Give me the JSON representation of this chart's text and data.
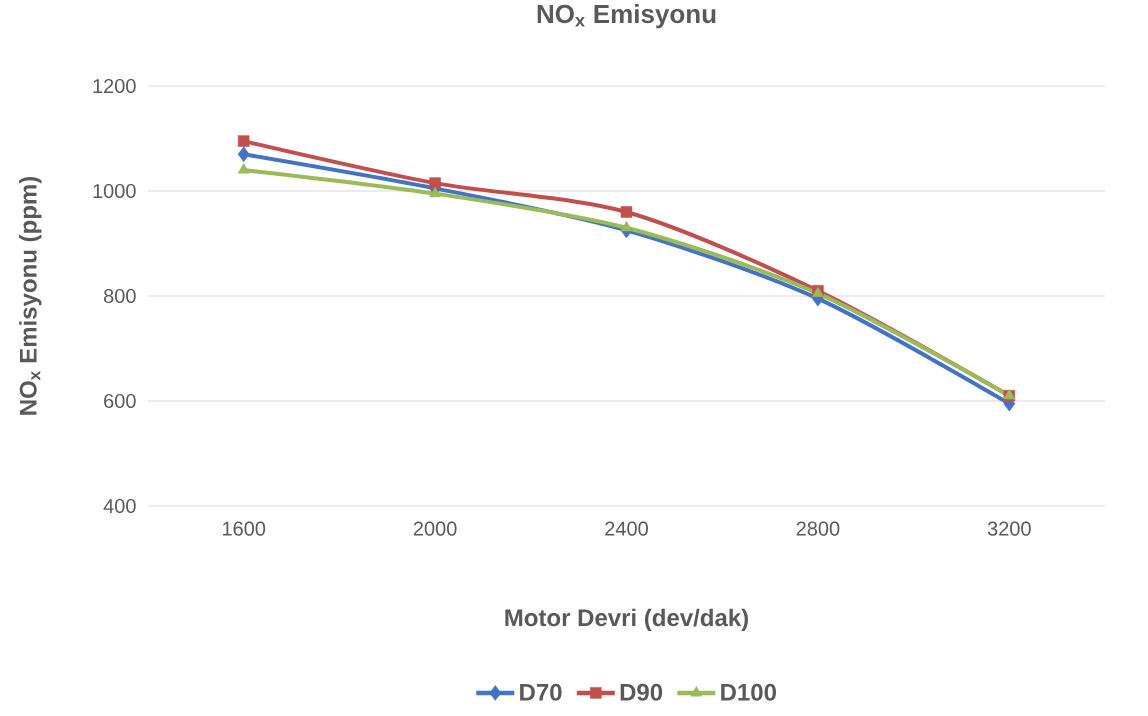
{
  "chart_data": {
    "type": "line",
    "title": "NO$_{x}$ Emisyonu",
    "xlabel": "Motor Devri (dev/dak)",
    "ylabel": "NO$_{x}$ Emisyonu (ppm)",
    "categories": [
      "1600",
      "2000",
      "2400",
      "2800",
      "3200"
    ],
    "series": [
      {
        "name": "D70",
        "color": "#4472c4",
        "marker": "diamond",
        "values": [
          1070,
          1005,
          925,
          795,
          595
        ]
      },
      {
        "name": "D90",
        "color": "#c0504d",
        "marker": "square",
        "values": [
          1095,
          1015,
          960,
          810,
          610
        ]
      },
      {
        "name": "D100",
        "color": "#9bbb59",
        "marker": "triangle",
        "values": [
          1040,
          995,
          930,
          805,
          610
        ]
      }
    ],
    "ylim": [
      400,
      1200
    ],
    "yticks": [
      400,
      600,
      800,
      1000,
      1200
    ],
    "grid": "y",
    "legend": "bottom",
    "line_style": "solid"
  }
}
